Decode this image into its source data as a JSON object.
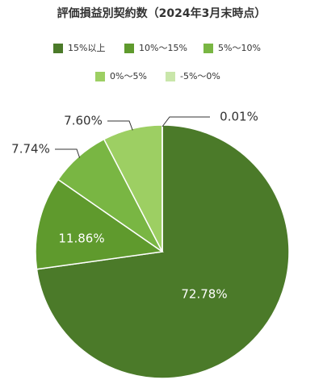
{
  "chart_data": {
    "type": "pie",
    "title": "評価損益別契約数（2024年3月末時点）",
    "categories": [
      "15%以上",
      "10%～15%",
      "5%～10%",
      "0%～5%",
      "-5%～0%"
    ],
    "values": [
      72.78,
      11.86,
      7.74,
      7.6,
      0.01
    ],
    "value_labels": [
      "72.78%",
      "11.86%",
      "7.74%",
      "7.60%",
      "0.01%"
    ],
    "colors": [
      "#4b7a29",
      "#5f9a2d",
      "#79b643",
      "#9dcf63",
      "#c9e6aa"
    ]
  }
}
